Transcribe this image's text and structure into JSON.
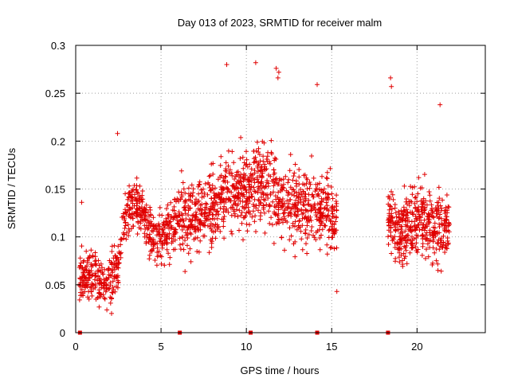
{
  "chart_data": {
    "type": "scatter",
    "title": "Day 013 of 2023, SRMTID for receiver malm",
    "xlabel": "GPS time / hours",
    "ylabel": "SRMTID / TECUs",
    "xlim": [
      0,
      24
    ],
    "ylim": [
      0,
      0.3
    ],
    "xticks": [
      0,
      5,
      10,
      15,
      20
    ],
    "xtick_labels": [
      "0",
      "5",
      "10",
      "15",
      "20"
    ],
    "yticks": [
      0,
      0.05,
      0.1,
      0.15,
      0.2,
      0.25,
      0.3
    ],
    "ytick_labels": [
      "0",
      "0.05",
      "0.1",
      "0.15",
      "0.2",
      "0.25",
      "0.3"
    ],
    "grid": true,
    "marker": "+",
    "color": "#e00000",
    "gap_markers_x": [
      0.25,
      6.1,
      10.25,
      14.15,
      18.3
    ],
    "trend": [
      {
        "t": 0.2,
        "y": 0.06,
        "s": 0.022
      },
      {
        "t": 1.0,
        "y": 0.06,
        "s": 0.022
      },
      {
        "t": 1.8,
        "y": 0.05,
        "s": 0.02
      },
      {
        "t": 2.5,
        "y": 0.075,
        "s": 0.025
      },
      {
        "t": 3.0,
        "y": 0.13,
        "s": 0.022
      },
      {
        "t": 3.8,
        "y": 0.135,
        "s": 0.02
      },
      {
        "t": 4.5,
        "y": 0.1,
        "s": 0.022
      },
      {
        "t": 5.2,
        "y": 0.1,
        "s": 0.025
      },
      {
        "t": 6.0,
        "y": 0.12,
        "s": 0.03
      },
      {
        "t": 7.0,
        "y": 0.12,
        "s": 0.03
      },
      {
        "t": 8.0,
        "y": 0.13,
        "s": 0.03
      },
      {
        "t": 9.0,
        "y": 0.15,
        "s": 0.035
      },
      {
        "t": 10.0,
        "y": 0.15,
        "s": 0.035
      },
      {
        "t": 11.0,
        "y": 0.16,
        "s": 0.04
      },
      {
        "t": 12.0,
        "y": 0.14,
        "s": 0.035
      },
      {
        "t": 13.0,
        "y": 0.13,
        "s": 0.035
      },
      {
        "t": 14.0,
        "y": 0.13,
        "s": 0.03
      },
      {
        "t": 15.2,
        "y": 0.12,
        "s": 0.028
      },
      {
        "t": 18.3,
        "y": 0.12,
        "s": 0.03
      },
      {
        "t": 19.0,
        "y": 0.1,
        "s": 0.028
      },
      {
        "t": 20.0,
        "y": 0.12,
        "s": 0.03
      },
      {
        "t": 21.0,
        "y": 0.11,
        "s": 0.032
      },
      {
        "t": 21.9,
        "y": 0.115,
        "s": 0.03
      }
    ],
    "segments": [
      {
        "start": 0.2,
        "end": 15.3,
        "count": 1550
      },
      {
        "start": 18.3,
        "end": 21.9,
        "count": 420
      }
    ],
    "notable_points": [
      {
        "x": 0.35,
        "y": 0.136
      },
      {
        "x": 2.45,
        "y": 0.208
      },
      {
        "x": 8.85,
        "y": 0.28
      },
      {
        "x": 10.55,
        "y": 0.282
      },
      {
        "x": 11.75,
        "y": 0.276
      },
      {
        "x": 11.9,
        "y": 0.272
      },
      {
        "x": 11.85,
        "y": 0.266
      },
      {
        "x": 14.15,
        "y": 0.259
      },
      {
        "x": 18.45,
        "y": 0.266
      },
      {
        "x": 18.5,
        "y": 0.257
      },
      {
        "x": 21.35,
        "y": 0.238
      },
      {
        "x": 15.3,
        "y": 0.043
      },
      {
        "x": 2.1,
        "y": 0.02
      }
    ]
  }
}
